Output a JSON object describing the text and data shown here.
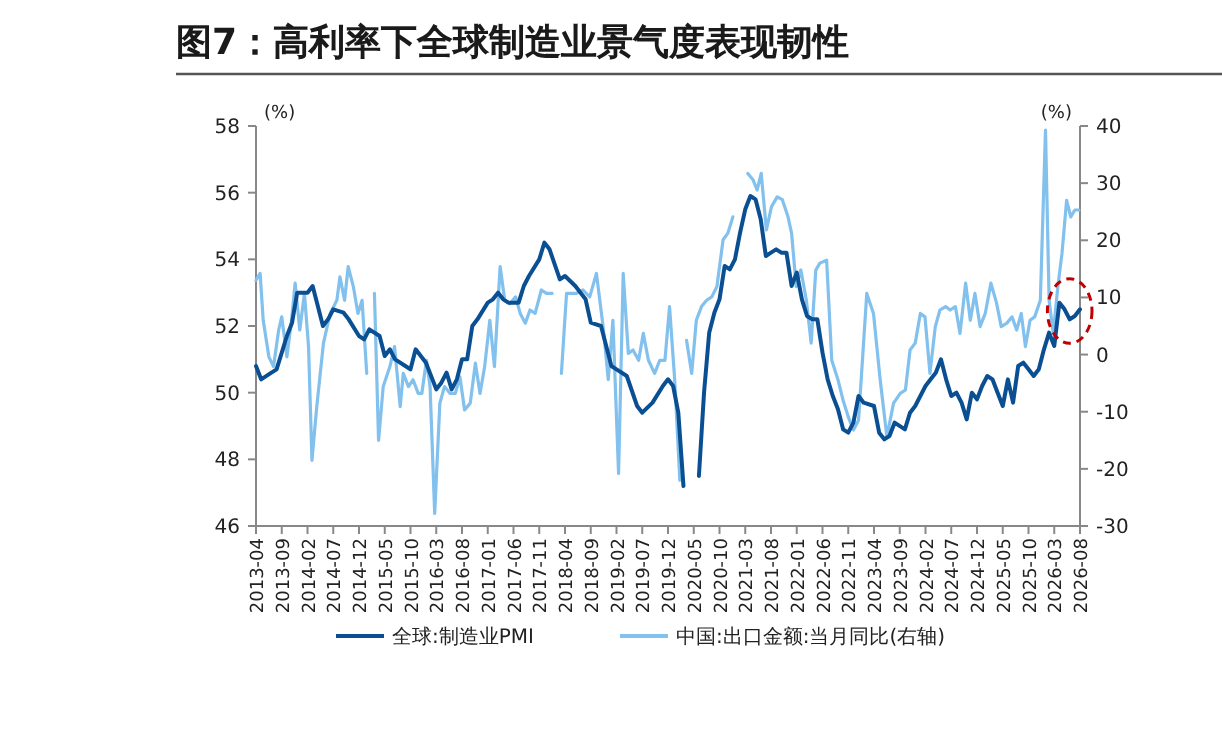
{
  "chart_data": {
    "type": "line",
    "title": "图7：高利率下全球制造业景气度表现韧性",
    "ylabel": "(%)",
    "y2label": "(%)",
    "xlim": [
      "2013-04",
      "2026-08"
    ],
    "xticks": [
      "2013-04",
      "2013-09",
      "2014-02",
      "2014-07",
      "2014-12",
      "2015-05",
      "2015-10",
      "2016-03",
      "2016-08",
      "2017-01",
      "2017-06",
      "2017-11",
      "2018-04",
      "2018-09",
      "2019-02",
      "2019-07",
      "2019-12",
      "2020-05",
      "2020-10",
      "2021-03",
      "2021-08",
      "2022-01",
      "2022-06",
      "2022-11",
      "2023-04",
      "2023-09",
      "2024-02",
      "2024-07",
      "2024-12",
      "2025-05",
      "2025-10",
      "2026-03",
      "2026-08"
    ],
    "ylim": [
      46,
      58
    ],
    "yticks": [
      46,
      48,
      50,
      52,
      54,
      56,
      58
    ],
    "y2lim": [
      -30,
      40
    ],
    "y2ticks": [
      -30,
      -20,
      -10,
      0,
      10,
      20,
      30,
      40
    ],
    "legend": "bottom",
    "series": [
      {
        "name": "全球:制造业PMI",
        "color": "#0b4f93",
        "x": [
          "2013-04",
          "2013-05",
          "2013-07",
          "2013-08",
          "2013-09",
          "2013-10",
          "2013-11",
          "2013-12",
          "2014-02",
          "2014-03",
          "2014-04",
          "2014-05",
          "2014-06",
          "2014-07",
          "2014-09",
          "2014-10",
          "2014-12",
          "2015-01",
          "2015-02",
          "2015-04",
          "2015-05",
          "2015-06",
          "2015-07",
          "2015-09",
          "2015-10",
          "2015-11",
          "2015-12",
          "2016-01",
          "2016-03",
          "2016-04",
          "2016-05",
          "2016-06",
          "2016-07",
          "2016-08",
          "2016-09",
          "2016-10",
          "2016-11",
          "2017-01",
          "2017-02",
          "2017-03",
          "2017-04",
          "2017-05",
          "2017-07",
          "2017-08",
          "2017-09",
          "2017-11",
          "2017-12",
          "2018-01",
          "2018-03",
          "2018-04",
          "2018-06",
          "2018-08",
          "2018-09",
          "2018-11",
          "2019-01",
          "2019-02",
          "2019-04",
          "2019-06",
          "2019-07",
          "2019-09",
          "2019-11",
          "2019-12",
          "2020-01",
          "2020-02",
          "2020-03",
          "2020-04",
          "2020-05",
          "2020-06",
          "2020-07",
          "2020-08",
          "2020-09",
          "2020-10",
          "2020-11",
          "2020-12",
          "2021-01",
          "2021-02",
          "2021-03",
          "2021-04",
          "2021-05",
          "2021-06",
          "2021-07",
          "2021-08",
          "2021-09",
          "2021-10",
          "2021-11",
          "2021-12",
          "2022-01",
          "2022-02",
          "2022-03",
          "2022-04",
          "2022-05",
          "2022-06",
          "2022-07",
          "2022-08",
          "2022-09",
          "2022-10",
          "2022-11",
          "2022-12",
          "2023-01",
          "2023-02",
          "2023-04",
          "2023-05",
          "2023-06",
          "2023-07",
          "2023-08",
          "2023-10",
          "2023-11",
          "2023-12",
          "2024-02",
          "2024-03",
          "2024-04",
          "2024-05",
          "2024-06",
          "2024-07",
          "2024-08",
          "2024-09",
          "2024-10",
          "2024-11",
          "2024-12",
          "2025-01",
          "2025-02",
          "2025-03",
          "2025-04",
          "2025-05",
          "2025-06",
          "2025-07",
          "2025-08",
          "2025-09",
          "2025-10",
          "2025-11",
          "2025-12",
          "2026-01",
          "2026-02",
          "2026-03",
          "2026-04",
          "2026-05",
          "2026-06",
          "2026-07",
          "2026-08"
        ],
        "values": [
          50.8,
          50.4,
          50.6,
          50.7,
          51.2,
          51.7,
          52.1,
          53.0,
          53.0,
          53.2,
          52.6,
          52.0,
          52.2,
          52.5,
          52.4,
          52.2,
          51.7,
          51.6,
          51.9,
          51.7,
          51.1,
          51.3,
          51.0,
          50.8,
          50.7,
          51.3,
          51.1,
          50.9,
          50.1,
          50.3,
          50.6,
          50.1,
          50.4,
          51.0,
          51.0,
          52.0,
          52.2,
          52.7,
          52.8,
          53.0,
          52.8,
          52.7,
          52.7,
          53.2,
          53.5,
          54.0,
          54.5,
          54.3,
          53.4,
          53.5,
          53.2,
          52.8,
          52.1,
          52.0,
          50.8,
          50.7,
          50.5,
          49.6,
          49.4,
          49.7,
          50.2,
          50.4,
          50.2,
          49.4,
          47.2,
          null,
          null,
          47.5,
          50.0,
          51.8,
          52.4,
          52.8,
          53.8,
          53.7,
          54.0,
          54.8,
          55.5,
          55.9,
          55.8,
          55.2,
          54.1,
          54.2,
          54.3,
          54.2,
          54.2,
          53.2,
          53.6,
          52.8,
          52.3,
          52.2,
          52.2,
          51.2,
          50.4,
          49.9,
          49.5,
          48.9,
          48.8,
          49.1,
          49.9,
          49.7,
          49.6,
          48.8,
          48.6,
          48.7,
          49.1,
          48.9,
          49.4,
          49.6,
          50.2,
          50.4,
          50.6,
          51.0,
          50.4,
          49.9,
          50.0,
          49.7,
          49.2,
          50.0,
          49.8,
          50.2,
          50.5,
          50.4,
          50.0,
          49.6,
          50.4,
          49.7,
          50.8,
          50.9,
          50.7,
          50.5,
          50.7,
          51.3,
          51.8,
          51.4,
          52.7,
          52.5,
          52.2,
          52.3,
          52.5
        ]
      },
      {
        "name": "中国:出口金额:当月同比(右轴)",
        "color": "#82c0ee",
        "axis": "y2",
        "x": [
          "2013-04-01",
          "2013-04-25",
          "2013-05-13",
          "2013-06-16",
          "2013-07-13",
          "2013-08-13",
          "2013-09-01",
          "2013-10-01",
          "2013-10-28",
          "2013-11-19",
          "2013-12-16",
          "2014-01-13",
          "2014-02-07",
          "2014-02-27",
          "2014-03-25",
          "2014-05-04",
          "2014-06-13",
          "2014-07-22",
          "2014-08-10",
          "2014-09-07",
          "2014-09-28",
          "2014-10-28",
          "2014-11-25",
          "2014-12-19",
          "2015-01-16",
          "2015-02-04",
          "2015-03-01",
          "2015-03-25",
          "2015-04-22",
          "2015-06-01",
          "2015-06-28",
          "2015-08-01",
          "2015-08-19",
          "2015-09-19",
          "2015-10-16",
          "2015-11-16",
          "2015-12-07",
          "2016-01-04",
          "2016-01-25",
          "2016-02-22",
          "2016-03-22",
          "2016-04-19",
          "2016-05-22",
          "2016-06-22",
          "2016-07-19",
          "2016-08-16",
          "2016-09-19",
          "2016-10-19",
          "2016-11-16",
          "2016-12-13",
          "2017-01-13",
          "2017-02-10",
          "2017-03-13",
          "2017-04-10",
          "2017-05-10",
          "2017-06-13",
          "2017-07-10",
          "2017-08-10",
          "2017-09-07",
          "2017-10-07",
          "2017-11-13",
          "2017-12-13",
          "2018-01-16",
          "2018-02-04",
          "2018-03-10",
          "2018-04-10",
          "2018-06-07",
          "2018-07-16",
          "2018-08-25",
          "2018-10-04",
          "2018-11-13",
          "2018-12-13",
          "2019-01-10",
          "2019-02-13",
          "2019-03-10",
          "2019-04-10",
          "2019-05-07",
          "2019-06-10",
          "2019-07-07",
          "2019-08-07",
          "2019-09-13",
          "2019-10-13",
          "2019-11-13",
          "2019-12-10",
          "2020-01-10",
          "2020-02-10",
          "2020-02-27",
          "2020-03-19",
          "2020-04-19",
          "2020-05-16",
          "2020-06-16",
          "2020-07-16",
          "2020-08-16",
          "2020-09-16",
          "2020-10-22",
          "2020-11-19",
          "2020-12-19",
          "2021-01-10",
          "2021-02-19",
          "2021-03-16",
          "2021-04-16",
          "2021-05-10",
          "2021-06-04",
          "2021-07-04",
          "2021-08-04",
          "2021-09-07",
          "2021-10-07",
          "2021-11-10",
          "2021-12-01",
          "2021-12-28",
          "2022-01-25",
          "2022-02-27",
          "2022-03-25",
          "2022-04-22",
          "2022-05-16",
          "2022-06-25",
          "2022-07-25",
          "2022-09-01",
          "2022-10-01",
          "2022-11-01",
          "2022-12-01",
          "2023-01-01",
          "2023-02-19",
          "2023-03-28",
          "2023-05-07",
          "2023-06-16",
          "2023-07-25",
          "2023-09-04",
          "2023-10-04",
          "2023-11-01",
          "2023-12-01",
          "2024-01-01",
          "2024-01-28",
          "2024-02-27",
          "2024-03-28",
          "2024-04-25",
          "2024-05-28",
          "2024-06-25",
          "2024-07-25",
          "2024-08-22",
          "2024-09-25",
          "2024-10-22",
          "2024-11-19",
          "2024-12-19",
          "2025-01-19",
          "2025-02-22",
          "2025-03-25",
          "2025-04-22",
          "2025-05-25",
          "2025-06-25",
          "2025-07-22",
          "2025-08-19",
          "2025-09-13",
          "2025-10-10",
          "2025-11-07",
          "2025-12-10",
          "2026-01-10",
          "2026-02-01",
          "2026-02-25",
          "2026-03-22",
          "2026-04-16",
          "2026-05-13",
          "2026-06-07",
          "2026-07-01",
          "2026-07-25"
        ],
        "values": [
          13.0,
          14.2,
          6.0,
          -0.4,
          -2.1,
          4.3,
          6.6,
          -0.4,
          6.0,
          12.5,
          4.3,
          10.7,
          1.4,
          -18.5,
          -9.1,
          2.0,
          7.2,
          9.5,
          13.6,
          9.5,
          15.4,
          11.9,
          7.2,
          9.5,
          -3.3,
          null,
          10.7,
          -15.0,
          -5.6,
          -2.1,
          1.4,
          -9.1,
          -3.3,
          -5.6,
          -4.4,
          -6.8,
          -6.8,
          -1.0,
          -5.6,
          -27.8,
          -8.5,
          -5.6,
          -6.8,
          -6.8,
          -3.9,
          -9.7,
          -8.5,
          -1.5,
          -6.8,
          -2.1,
          6.0,
          -2.1,
          15.4,
          9.5,
          8.9,
          10.1,
          7.2,
          5.5,
          7.8,
          7.2,
          11.3,
          10.7,
          10.7,
          null,
          -3.3,
          10.7,
          10.7,
          11.3,
          10.1,
          14.2,
          4.9,
          -4.4,
          6.0,
          -20.8,
          14.2,
          0.2,
          0.8,
          -1.0,
          3.7,
          -1.0,
          -3.3,
          -1.0,
          -1.0,
          8.4,
          -4.4,
          -22.0,
          null,
          2.5,
          -3.3,
          6.0,
          8.4,
          9.5,
          10.1,
          11.9,
          20.1,
          21.2,
          24.1,
          null,
          null,
          31.7,
          30.6,
          28.8,
          31.7,
          21.8,
          25.9,
          27.6,
          27.1,
          24.1,
          21.2,
          11.9,
          14.8,
          9.5,
          2.0,
          14.8,
          16.0,
          16.5,
          -1.0,
          -4.4,
          -8.0,
          -10.9,
          -13.2,
          -11.5,
          10.7,
          7.2,
          -4.4,
          -14.4,
          -8.5,
          -6.8,
          -6.2,
          0.8,
          2.0,
          7.2,
          6.6,
          -3.3,
          4.9,
          7.8,
          8.4,
          7.8,
          8.4,
          3.7,
          12.5,
          6.0,
          10.7,
          4.9,
          7.2,
          12.5,
          9.0,
          4.9,
          5.5,
          6.6,
          4.3,
          7.2,
          1.4,
          6.0,
          6.6,
          9.5,
          39.3,
          9.5,
          3.7,
          11.9,
          17.7,
          27.0,
          24.1,
          25.3,
          25.3
        ]
      }
    ]
  }
}
